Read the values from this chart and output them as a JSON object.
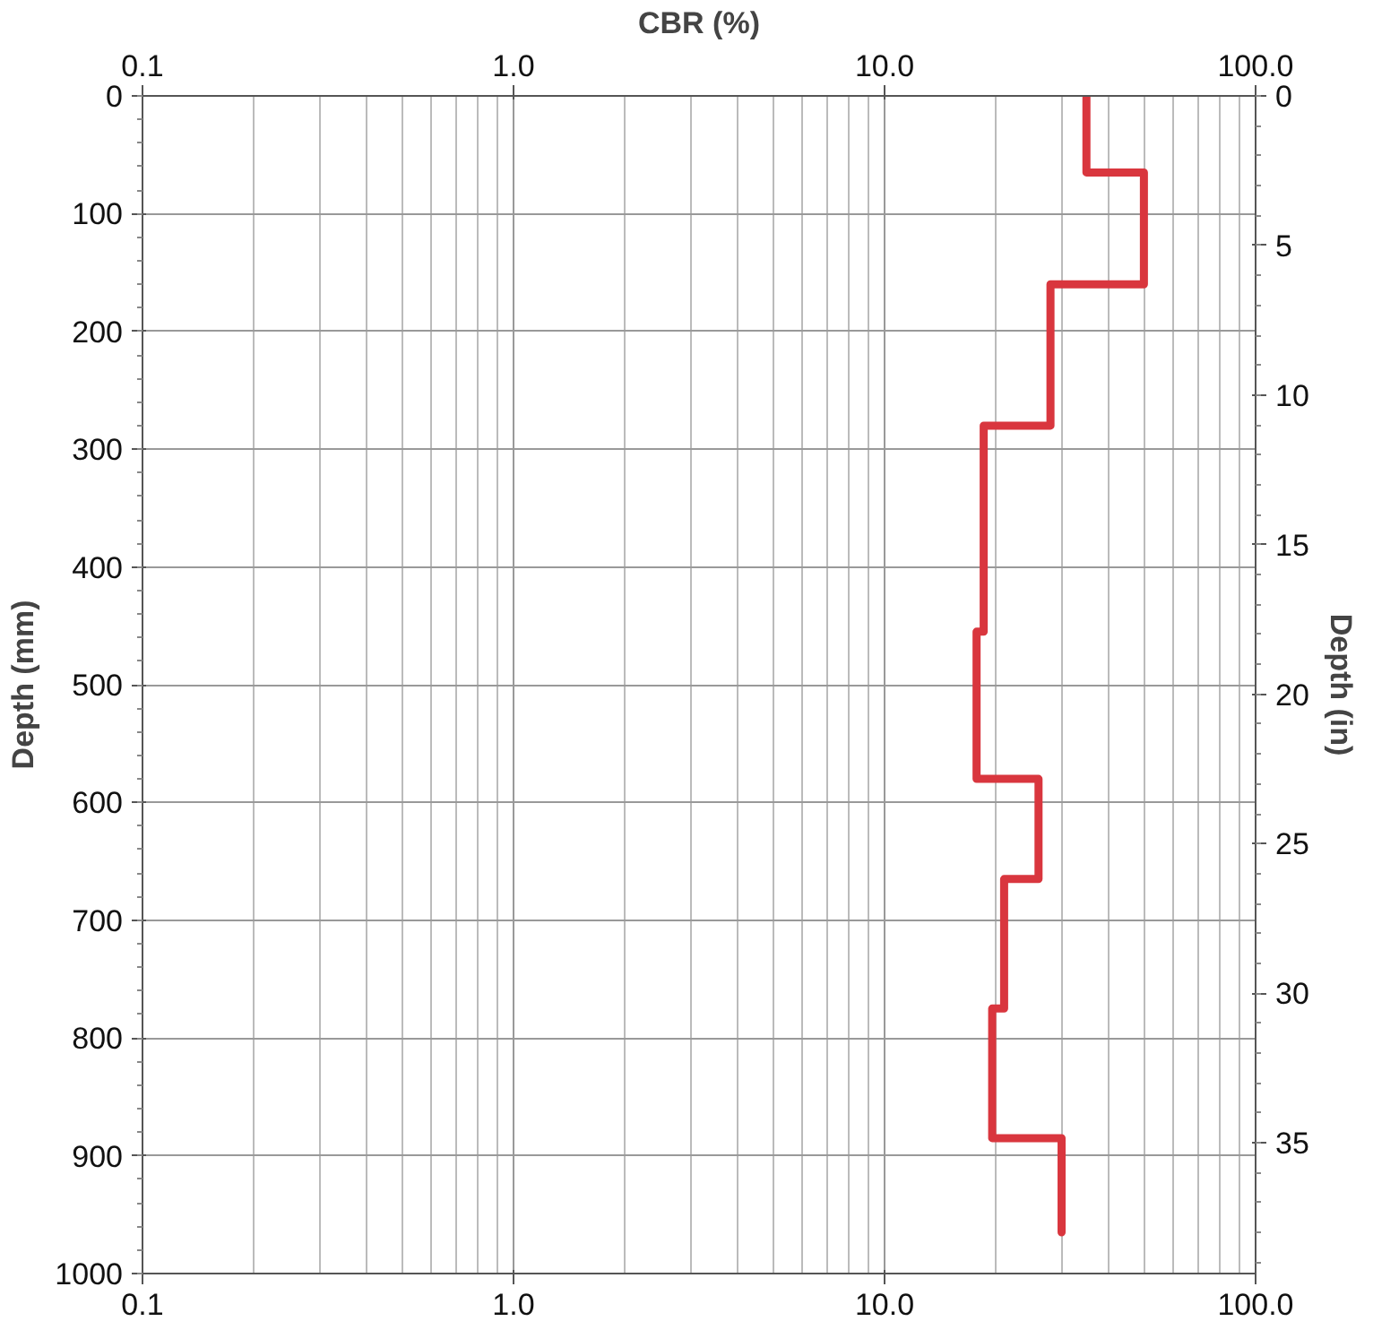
{
  "chart_data": {
    "type": "line",
    "xlabel": "CBR (%)",
    "ylabel": "Depth (mm)",
    "y2label": "Depth (in)",
    "x": [
      35,
      35,
      50,
      50,
      28,
      28,
      18.5,
      18.5,
      17.7,
      17.7,
      26,
      26,
      21,
      21,
      19.5,
      19.5,
      30,
      30
    ],
    "series": [
      {
        "color": "#d9363e",
        "values": [
          0,
          65,
          65,
          160,
          160,
          280,
          280,
          455,
          455,
          580,
          580,
          665,
          665,
          775,
          775,
          885,
          885,
          965
        ]
      }
    ],
    "log": "x",
    "xlim": [
      0.1,
      100
    ],
    "xticks": [
      {
        "value": 0.1,
        "label": "0.1"
      },
      {
        "value": 1,
        "label": "1.0"
      },
      {
        "value": 10,
        "label": "10.0"
      },
      {
        "value": 100,
        "label": "100.0"
      }
    ],
    "ylim": [
      1000,
      0
    ],
    "yticks": [
      0,
      100,
      200,
      300,
      400,
      500,
      600,
      700,
      800,
      900,
      1000
    ],
    "y2lim": [
      39.37,
      0
    ],
    "y2ticks": [
      0,
      5,
      10,
      15,
      20,
      25,
      30,
      35
    ],
    "grid": true,
    "marker": "none",
    "line_style": "solid"
  }
}
